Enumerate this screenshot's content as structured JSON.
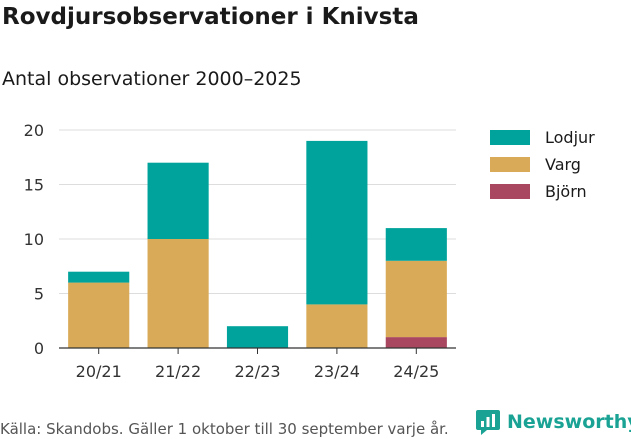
{
  "title": "Rovdjursobservationer i Knivsta",
  "subtitle": "Antal observationer 2000–2025",
  "footer": "Källa: Skandobs. Gäller 1 oktober till 30 september varje år.",
  "brand": "Newsworthy",
  "colors": {
    "Lodjur": "#00a39b",
    "Varg": "#d9ab58",
    "Björn": "#a8475f"
  },
  "chart_data": {
    "type": "bar",
    "stacked": true,
    "categories": [
      "20/21",
      "21/22",
      "22/23",
      "23/24",
      "24/25"
    ],
    "series": [
      {
        "name": "Björn",
        "values": [
          0,
          0,
          0,
          0,
          1
        ]
      },
      {
        "name": "Varg",
        "values": [
          6,
          10,
          0,
          4,
          7
        ]
      },
      {
        "name": "Lodjur",
        "values": [
          1,
          7,
          2,
          15,
          3
        ]
      }
    ],
    "ylim": [
      0,
      20
    ],
    "yticks": [
      0,
      5,
      10,
      15,
      20
    ],
    "legend": [
      "Lodjur",
      "Varg",
      "Björn"
    ],
    "legend_position": "right",
    "grid": true
  }
}
